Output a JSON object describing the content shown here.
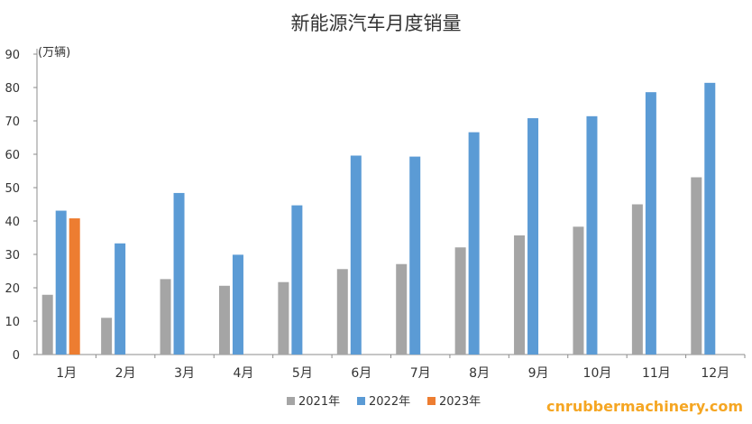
{
  "chart_data": {
    "type": "bar",
    "title": "新能源汽车月度销量",
    "unit_label": "(万辆)",
    "categories": [
      "1月",
      "2月",
      "3月",
      "4月",
      "5月",
      "6月",
      "7月",
      "8月",
      "9月",
      "10月",
      "11月",
      "12月"
    ],
    "ylim": [
      0,
      90
    ],
    "yticks": [
      0,
      10,
      20,
      30,
      40,
      50,
      60,
      70,
      80,
      90
    ],
    "grid": false,
    "legend_position": "bottom",
    "series": [
      {
        "name": "2021年",
        "color": "#a5a5a5",
        "values": [
          17.9,
          11.0,
          22.6,
          20.6,
          21.7,
          25.6,
          27.1,
          32.1,
          35.7,
          38.3,
          45.0,
          53.1
        ]
      },
      {
        "name": "2022年",
        "color": "#5b9bd5",
        "values": [
          43.1,
          33.3,
          48.4,
          29.9,
          44.7,
          59.6,
          59.3,
          66.6,
          70.8,
          71.4,
          78.6,
          81.4
        ]
      },
      {
        "name": "2023年",
        "color": "#ed7d31",
        "values": [
          40.8,
          null,
          null,
          null,
          null,
          null,
          null,
          null,
          null,
          null,
          null,
          null
        ]
      }
    ]
  },
  "watermark": "cnrubbermachinery.com"
}
